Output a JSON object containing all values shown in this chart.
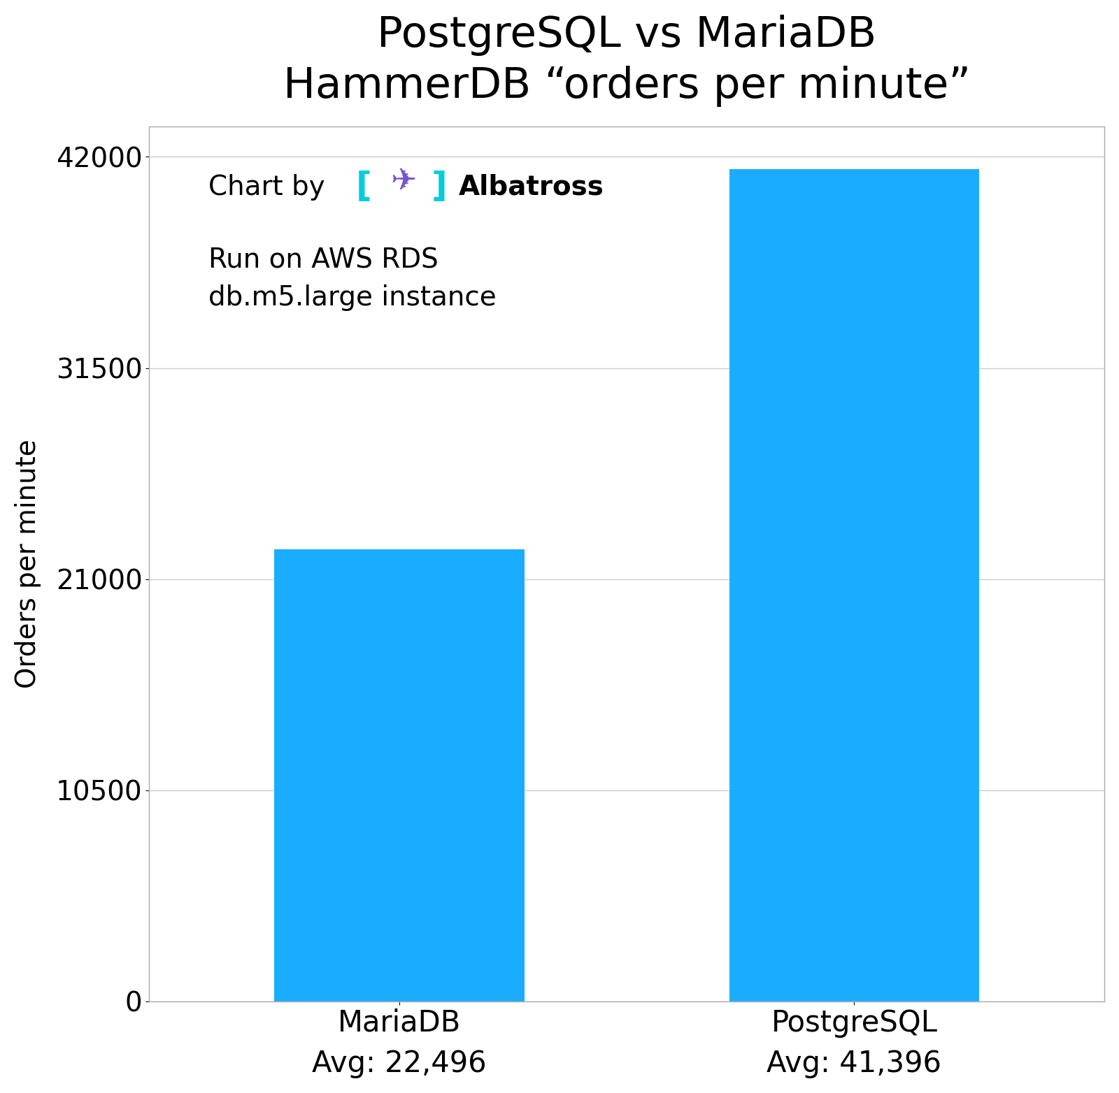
{
  "title_line1": "PostgreSQL vs MariaDB",
  "title_line2": "HammerDB “orders per minute”",
  "categories": [
    "MariaDB",
    "PostgreSQL"
  ],
  "values": [
    22496,
    41396
  ],
  "bar_color": "#1AADFF",
  "ylabel": "Orders per minute",
  "yticks": [
    0,
    10500,
    21000,
    31500,
    42000
  ],
  "ylim": [
    0,
    43500
  ],
  "xlabel_labels": [
    "MariaDB\nAvg: 22,496",
    "PostgreSQL\nAvg: 41,396"
  ],
  "annotation_text": "Run on AWS RDS\ndb.m5.large instance",
  "chart_by_text": "Chart by",
  "albatross_text": "Albatross",
  "title_fontsize": 44,
  "axis_fontsize": 28,
  "tick_fontsize": 28,
  "xlabel_fontsize": 30,
  "annotation_fontsize": 28,
  "chartby_fontsize": 28,
  "albatross_fontsize": 28,
  "background_color": "#ffffff",
  "bar_width": 0.55,
  "bracket_color": "#00CCDD",
  "bird_color": "#7755CC",
  "grid_color": "#cccccc"
}
